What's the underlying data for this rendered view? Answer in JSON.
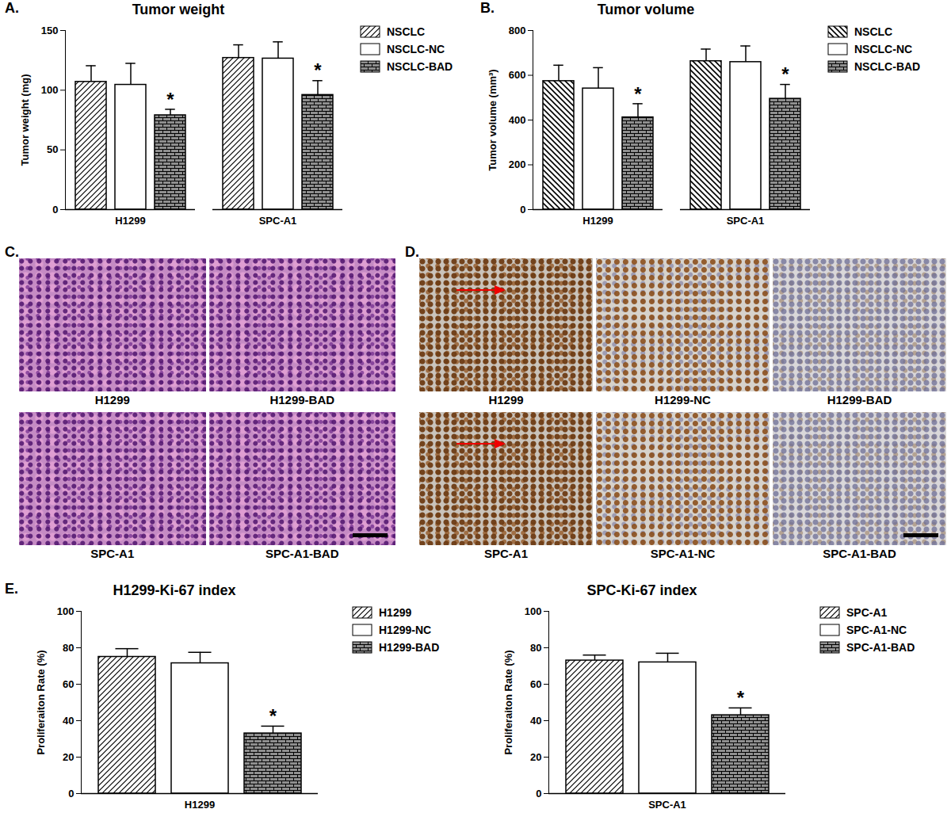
{
  "chart_data": [
    {
      "panel": "A.",
      "type": "bar",
      "title": "Tumor weight",
      "y_label": "Tumor weight (mg)",
      "categories": [
        "H1299",
        "SPC-A1"
      ],
      "series": [
        {
          "name": "NSCLC",
          "color": "#ffffff",
          "values": [
            107,
            127
          ],
          "errors": [
            13.5,
            11
          ]
        },
        {
          "name": "NSCLC-NC",
          "color": "#ffffff",
          "values": [
            104.5,
            126.5
          ],
          "errors": [
            18,
            14
          ]
        },
        {
          "name": "NSCLC-BAD",
          "color": "#ffffff",
          "values": [
            79,
            96
          ],
          "errors": [
            5,
            12
          ]
        }
      ],
      "ylim": [
        0,
        150
      ],
      "yticks": [
        0,
        50,
        100,
        150
      ],
      "grid": false,
      "legend": "right",
      "annotations": [
        {
          "category": "H1299",
          "series": "NSCLC-BAD",
          "text": "*"
        },
        {
          "category": "SPC-A1",
          "series": "NSCLC-BAD",
          "text": "*"
        }
      ]
    },
    {
      "panel": "B.",
      "type": "bar",
      "title": "Tumor volume",
      "y_label": "Tumor volume (mm³)",
      "categories": [
        "H1299",
        "SPC-A1"
      ],
      "series": [
        {
          "name": "NSCLC",
          "color": "#ffffff",
          "values": [
            574,
            663
          ],
          "errors": [
            71,
            54
          ]
        },
        {
          "name": "NSCLC-NC",
          "color": "#ffffff",
          "values": [
            541,
            659
          ],
          "errors": [
            93,
            72
          ]
        },
        {
          "name": "NSCLC-BAD",
          "color": "#ffffff",
          "values": [
            412,
            495
          ],
          "errors": [
            61,
            64
          ]
        }
      ],
      "ylim": [
        0,
        800
      ],
      "yticks": [
        0,
        200,
        400,
        600,
        800
      ],
      "grid": false,
      "legend": "right",
      "annotations": [
        {
          "category": "H1299",
          "series": "NSCLC-BAD",
          "text": "*"
        },
        {
          "category": "SPC-A1",
          "series": "NSCLC-BAD",
          "text": "*"
        }
      ]
    },
    {
      "panel": "E.",
      "type": "bar",
      "title": "H1299-Ki-67 index",
      "y_label": "Proliferaiton Rate (%)",
      "categories": [
        "H1299"
      ],
      "series": [
        {
          "name": "H1299",
          "color": "#ffffff",
          "values": [
            75
          ],
          "errors": [
            4.5
          ]
        },
        {
          "name": "H1299-NC",
          "color": "#ffffff",
          "values": [
            71.5
          ],
          "errors": [
            6
          ]
        },
        {
          "name": "H1299-BAD",
          "color": "#ffffff",
          "values": [
            33
          ],
          "errors": [
            4
          ]
        }
      ],
      "ylim": [
        0,
        100
      ],
      "yticks": [
        0,
        20,
        40,
        60,
        80,
        100
      ],
      "grid": false,
      "legend": "right",
      "annotations": [
        {
          "category": "H1299",
          "series": "H1299-BAD",
          "text": "*"
        }
      ]
    },
    {
      "type": "bar",
      "title": "SPC-Ki-67 index",
      "y_label": "Proliferaiton Rate (%)",
      "categories": [
        "SPC-A1"
      ],
      "series": [
        {
          "name": "SPC-A1",
          "color": "#ffffff",
          "values": [
            73
          ],
          "errors": [
            3
          ]
        },
        {
          "name": "SPC-A1-NC",
          "color": "#ffffff",
          "values": [
            72
          ],
          "errors": [
            5
          ]
        },
        {
          "name": "SPC-A1-BAD",
          "color": "#ffffff",
          "values": [
            43
          ],
          "errors": [
            4
          ]
        }
      ],
      "ylim": [
        0,
        100
      ],
      "yticks": [
        0,
        20,
        40,
        60,
        80,
        100
      ],
      "grid": false,
      "legend": "right",
      "annotations": [
        {
          "category": "SPC-A1",
          "series": "SPC-A1-BAD",
          "text": "*"
        }
      ]
    }
  ],
  "image_panels": [
    {
      "panel": "C.",
      "labels": [
        "H1299",
        "H1299-BAD",
        "SPC-A1",
        "SPC-A1-BAD"
      ]
    },
    {
      "panel": "D.",
      "labels": [
        "H1299",
        "H1299-NC",
        "H1299-BAD",
        "SPC-A1",
        "SPC-A1-NC",
        "SPC-A1-BAD"
      ]
    }
  ]
}
